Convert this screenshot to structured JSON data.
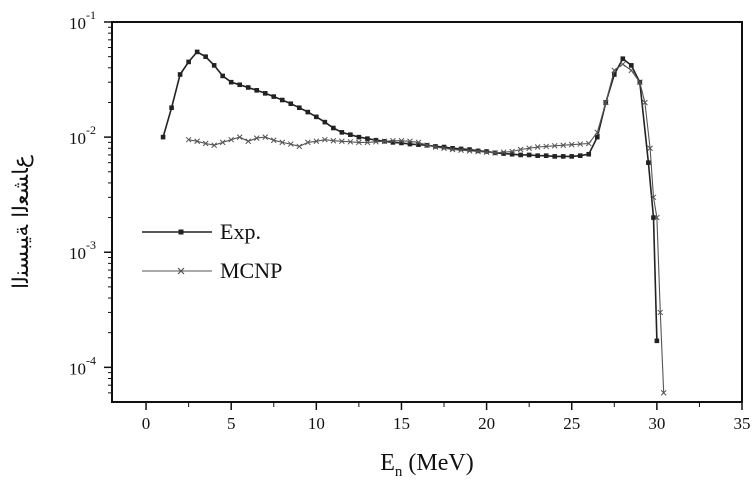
{
  "chart_data": {
    "type": "line",
    "xlabel_main": "E",
    "xlabel_sub": "n",
    "xlabel_unit": " (MeV)",
    "ylabel": "ﻉﺎﺸﻌﻟﺍ ﺔﻴﺒﺴﻨﻟﺍ",
    "xlim": [
      -2,
      35
    ],
    "ylim": [
      5e-05,
      0.1
    ],
    "y_scale": "log",
    "x_ticks": [
      0,
      5,
      10,
      15,
      20,
      25,
      30,
      35
    ],
    "x_tick_labels": [
      "0",
      "5",
      "10",
      "15",
      "20",
      "25",
      "30",
      "35"
    ],
    "y_ticks": [
      {
        "value": 0.1,
        "base": "10",
        "exp": "-1"
      },
      {
        "value": 0.01,
        "base": "10",
        "exp": "-2"
      },
      {
        "value": 0.001,
        "base": "10",
        "exp": "-3"
      },
      {
        "value": 0.0001,
        "base": "10",
        "exp": "-4"
      }
    ],
    "legend_position": "left-middle",
    "series": [
      {
        "name": "Exp.",
        "color": "#222222",
        "marker": "square",
        "points": [
          [
            1.0,
            0.01
          ],
          [
            1.5,
            0.018
          ],
          [
            2.0,
            0.035
          ],
          [
            2.5,
            0.045
          ],
          [
            3.0,
            0.055
          ],
          [
            3.5,
            0.05
          ],
          [
            4.0,
            0.042
          ],
          [
            4.5,
            0.034
          ],
          [
            5.0,
            0.03
          ],
          [
            5.5,
            0.0285
          ],
          [
            6.0,
            0.027
          ],
          [
            6.5,
            0.0255
          ],
          [
            7.0,
            0.024
          ],
          [
            7.5,
            0.0225
          ],
          [
            8.0,
            0.021
          ],
          [
            8.5,
            0.0195
          ],
          [
            9.0,
            0.018
          ],
          [
            9.5,
            0.0165
          ],
          [
            10.0,
            0.015
          ],
          [
            10.5,
            0.0135
          ],
          [
            11.0,
            0.012
          ],
          [
            11.5,
            0.011
          ],
          [
            12.0,
            0.0105
          ],
          [
            12.5,
            0.01
          ],
          [
            13.0,
            0.0097
          ],
          [
            13.5,
            0.0094
          ],
          [
            14.0,
            0.0092
          ],
          [
            14.5,
            0.009
          ],
          [
            15.0,
            0.0089
          ],
          [
            15.5,
            0.0087
          ],
          [
            16.0,
            0.0086
          ],
          [
            16.5,
            0.0085
          ],
          [
            17.0,
            0.0083
          ],
          [
            17.5,
            0.0082
          ],
          [
            18.0,
            0.008
          ],
          [
            18.5,
            0.0079
          ],
          [
            19.0,
            0.0078
          ],
          [
            19.5,
            0.0076
          ],
          [
            20.0,
            0.0075
          ],
          [
            20.5,
            0.0073
          ],
          [
            21.0,
            0.0072
          ],
          [
            21.5,
            0.0071
          ],
          [
            22.0,
            0.007
          ],
          [
            22.5,
            0.007
          ],
          [
            23.0,
            0.0069
          ],
          [
            23.5,
            0.0069
          ],
          [
            24.0,
            0.0068
          ],
          [
            24.5,
            0.0068
          ],
          [
            25.0,
            0.0068
          ],
          [
            25.5,
            0.0069
          ],
          [
            26.0,
            0.0071
          ],
          [
            26.5,
            0.01
          ],
          [
            27.0,
            0.02
          ],
          [
            27.5,
            0.035
          ],
          [
            28.0,
            0.048
          ],
          [
            28.5,
            0.042
          ],
          [
            29.0,
            0.03
          ],
          [
            29.5,
            0.006
          ],
          [
            29.8,
            0.002
          ],
          [
            30.0,
            0.00017
          ]
        ]
      },
      {
        "name": "MCNP",
        "color": "#555555",
        "marker": "cross",
        "points": [
          [
            2.5,
            0.0095
          ],
          [
            3.0,
            0.0092
          ],
          [
            3.5,
            0.0088
          ],
          [
            4.0,
            0.0085
          ],
          [
            4.5,
            0.009
          ],
          [
            5.0,
            0.0095
          ],
          [
            5.5,
            0.01
          ],
          [
            6.0,
            0.0092
          ],
          [
            6.5,
            0.0098
          ],
          [
            7.0,
            0.01
          ],
          [
            7.5,
            0.0094
          ],
          [
            8.0,
            0.009
          ],
          [
            8.5,
            0.0087
          ],
          [
            9.0,
            0.0083
          ],
          [
            9.5,
            0.009
          ],
          [
            10.0,
            0.0092
          ],
          [
            10.5,
            0.0095
          ],
          [
            11.0,
            0.0093
          ],
          [
            11.5,
            0.0092
          ],
          [
            12.0,
            0.0091
          ],
          [
            12.5,
            0.009
          ],
          [
            13.0,
            0.009
          ],
          [
            13.5,
            0.0091
          ],
          [
            14.0,
            0.0092
          ],
          [
            14.5,
            0.0093
          ],
          [
            15.0,
            0.0093
          ],
          [
            15.5,
            0.0092
          ],
          [
            16.0,
            0.009
          ],
          [
            16.5,
            0.0085
          ],
          [
            17.0,
            0.0082
          ],
          [
            17.5,
            0.008
          ],
          [
            18.0,
            0.0078
          ],
          [
            18.5,
            0.0077
          ],
          [
            19.0,
            0.0076
          ],
          [
            19.5,
            0.0075
          ],
          [
            20.0,
            0.0074
          ],
          [
            20.5,
            0.0073
          ],
          [
            21.0,
            0.0074
          ],
          [
            21.5,
            0.0075
          ],
          [
            22.0,
            0.0078
          ],
          [
            22.5,
            0.008
          ],
          [
            23.0,
            0.0082
          ],
          [
            23.5,
            0.0083
          ],
          [
            24.0,
            0.0084
          ],
          [
            24.5,
            0.0085
          ],
          [
            25.0,
            0.0086
          ],
          [
            25.5,
            0.0087
          ],
          [
            26.0,
            0.0088
          ],
          [
            26.5,
            0.011
          ],
          [
            27.0,
            0.02
          ],
          [
            27.5,
            0.038
          ],
          [
            28.0,
            0.043
          ],
          [
            28.5,
            0.038
          ],
          [
            29.0,
            0.03
          ],
          [
            29.3,
            0.02
          ],
          [
            29.6,
            0.008
          ],
          [
            29.8,
            0.003
          ],
          [
            30.0,
            0.002
          ],
          [
            30.2,
            0.0003
          ],
          [
            30.4,
            6e-05
          ]
        ]
      }
    ]
  }
}
